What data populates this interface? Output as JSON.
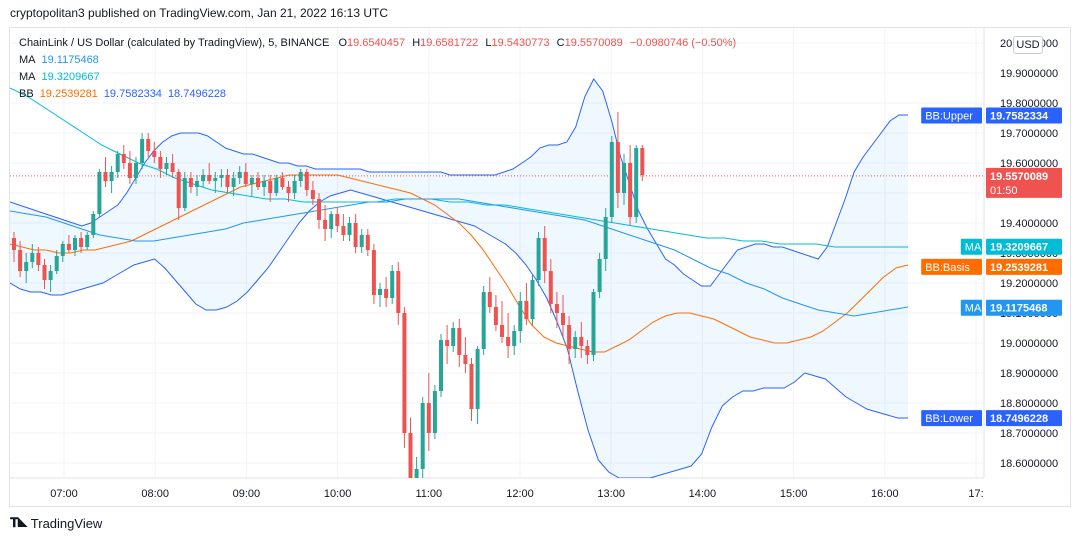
{
  "header": {
    "published": "cryptopolitan3 published on TradingView.com, Jan 21, 2022 16:13 UTC"
  },
  "legend": {
    "symbol": "ChainLink / US Dollar (calculated by TradingView), 5, BINANCE",
    "o_label": "O",
    "o": "19.6540457",
    "h_label": "H",
    "h": "19.6581722",
    "l_label": "L",
    "l": "19.5430773",
    "c_label": "C",
    "c": "19.5570089",
    "change": "−0.0980746 (−0.50%)",
    "ma1_label": "MA",
    "ma1": "19.1175468",
    "ma2_label": "MA",
    "ma2": "19.3209667",
    "bb_label": "BB",
    "bb_basis": "19.2539281",
    "bb_upper": "19.7582334",
    "bb_lower": "18.7496228"
  },
  "currency_button": "USD",
  "footer": {
    "brand": "TradingView"
  },
  "colors": {
    "up": "#26a69a",
    "down": "#ef5350",
    "bb_line": "#2962ff",
    "bb_fill": "#2196f3",
    "basis": "#ff6d00",
    "ma_fast": "#2196f3",
    "ma_slow": "#00bcd4",
    "axis_text": "#131722",
    "grid": "#f0f3fa"
  },
  "chart_data": {
    "type": "candlestick",
    "timeframe": "5",
    "exchange": "BINANCE",
    "ylim": [
      18.55,
      20.05
    ],
    "y_ticks": [
      "20.0000000",
      "19.9000000",
      "19.8000000",
      "19.7000000",
      "19.6000000",
      "19.5000000",
      "19.4000000",
      "19.3000000",
      "19.2000000",
      "19.1000000",
      "19.0000000",
      "18.9000000",
      "18.8000000",
      "18.7000000",
      "18.6000000"
    ],
    "x_ticks": [
      "07:00",
      "08:00",
      "09:00",
      "10:00",
      "11:00",
      "12:00",
      "13:00",
      "14:00",
      "15:00",
      "16:00",
      "17:"
    ],
    "last_price": "19.5570089",
    "countdown": "01:50",
    "axis_labels": [
      {
        "name": "BB:Upper",
        "value": "19.7582334",
        "color": "#2962ff"
      },
      {
        "name": "",
        "value": "19.5570089",
        "color": "#ef5350"
      },
      {
        "name": "MA",
        "value": "19.3209667",
        "color": "#00bcd4"
      },
      {
        "name": "BB:Basis",
        "value": "19.2539281",
        "color": "#ff6d00"
      },
      {
        "name": "MA",
        "value": "19.1175468",
        "color": "#2196f3"
      },
      {
        "name": "BB:Lower",
        "value": "18.7496228",
        "color": "#2962ff"
      }
    ],
    "candles": [
      [
        19.35,
        19.37,
        19.27,
        19.31
      ],
      [
        19.31,
        19.34,
        19.22,
        19.24
      ],
      [
        19.24,
        19.3,
        19.2,
        19.27
      ],
      [
        19.27,
        19.33,
        19.25,
        19.3
      ],
      [
        19.3,
        19.32,
        19.24,
        19.26
      ],
      [
        19.26,
        19.28,
        19.18,
        19.21
      ],
      [
        19.21,
        19.26,
        19.17,
        19.24
      ],
      [
        19.24,
        19.31,
        19.23,
        19.29
      ],
      [
        19.29,
        19.34,
        19.27,
        19.33
      ],
      [
        19.33,
        19.36,
        19.3,
        19.31
      ],
      [
        19.31,
        19.36,
        19.29,
        19.35
      ],
      [
        19.35,
        19.37,
        19.3,
        19.32
      ],
      [
        19.32,
        19.37,
        19.31,
        19.36
      ],
      [
        19.36,
        19.44,
        19.35,
        19.43
      ],
      [
        19.43,
        19.58,
        19.42,
        19.57
      ],
      [
        19.57,
        19.62,
        19.52,
        19.54
      ],
      [
        19.54,
        19.59,
        19.5,
        19.57
      ],
      [
        19.57,
        19.64,
        19.55,
        19.63
      ],
      [
        19.63,
        19.66,
        19.58,
        19.6
      ],
      [
        19.6,
        19.64,
        19.53,
        19.55
      ],
      [
        19.55,
        19.62,
        19.53,
        19.6
      ],
      [
        19.6,
        19.7,
        19.58,
        19.68
      ],
      [
        19.68,
        19.7,
        19.62,
        19.64
      ],
      [
        19.64,
        19.67,
        19.6,
        19.62
      ],
      [
        19.62,
        19.64,
        19.55,
        19.58
      ],
      [
        19.58,
        19.62,
        19.56,
        19.6
      ],
      [
        19.6,
        19.63,
        19.55,
        19.57
      ],
      [
        19.57,
        19.58,
        19.41,
        19.45
      ],
      [
        19.45,
        19.57,
        19.44,
        19.55
      ],
      [
        19.55,
        19.57,
        19.5,
        19.52
      ],
      [
        19.52,
        19.56,
        19.49,
        19.54
      ],
      [
        19.54,
        19.58,
        19.52,
        19.56
      ],
      [
        19.56,
        19.6,
        19.53,
        19.54
      ],
      [
        19.54,
        19.57,
        19.5,
        19.55
      ],
      [
        19.55,
        19.58,
        19.52,
        19.56
      ],
      [
        19.56,
        19.58,
        19.5,
        19.52
      ],
      [
        19.52,
        19.57,
        19.49,
        19.55
      ],
      [
        19.55,
        19.59,
        19.53,
        19.57
      ],
      [
        19.57,
        19.6,
        19.52,
        19.53
      ],
      [
        19.53,
        19.56,
        19.49,
        19.55
      ],
      [
        19.55,
        19.57,
        19.51,
        19.52
      ],
      [
        19.52,
        19.56,
        19.49,
        19.54
      ],
      [
        19.54,
        19.56,
        19.47,
        19.5
      ],
      [
        19.5,
        19.56,
        19.49,
        19.55
      ],
      [
        19.55,
        19.57,
        19.51,
        19.52
      ],
      [
        19.52,
        19.54,
        19.47,
        19.5
      ],
      [
        19.5,
        19.56,
        19.48,
        19.54
      ],
      [
        19.54,
        19.58,
        19.52,
        19.57
      ],
      [
        19.57,
        19.58,
        19.49,
        19.51
      ],
      [
        19.51,
        19.54,
        19.46,
        19.48
      ],
      [
        19.48,
        19.5,
        19.38,
        19.41
      ],
      [
        19.41,
        19.46,
        19.34,
        19.38
      ],
      [
        19.38,
        19.44,
        19.35,
        19.43
      ],
      [
        19.43,
        19.45,
        19.37,
        19.39
      ],
      [
        19.39,
        19.43,
        19.34,
        19.36
      ],
      [
        19.36,
        19.42,
        19.34,
        19.4
      ],
      [
        19.4,
        19.43,
        19.3,
        19.32
      ],
      [
        19.32,
        19.38,
        19.3,
        19.36
      ],
      [
        19.36,
        19.38,
        19.29,
        19.31
      ],
      [
        19.31,
        19.33,
        19.13,
        19.16
      ],
      [
        19.16,
        19.2,
        19.12,
        19.18
      ],
      [
        19.18,
        19.22,
        19.12,
        19.15
      ],
      [
        19.15,
        19.26,
        19.13,
        19.24
      ],
      [
        19.24,
        19.27,
        19.06,
        19.1
      ],
      [
        19.1,
        19.12,
        18.65,
        18.7
      ],
      [
        18.7,
        18.75,
        18.4,
        18.45
      ],
      [
        18.45,
        18.62,
        18.42,
        18.58
      ],
      [
        18.58,
        18.82,
        18.55,
        18.8
      ],
      [
        18.8,
        18.9,
        18.64,
        18.7
      ],
      [
        18.7,
        18.86,
        18.68,
        18.84
      ],
      [
        18.84,
        19.03,
        18.82,
        19.01
      ],
      [
        19.01,
        19.06,
        18.93,
        18.99
      ],
      [
        18.99,
        19.07,
        18.97,
        19.05
      ],
      [
        19.05,
        19.08,
        18.92,
        18.96
      ],
      [
        18.96,
        19.02,
        18.9,
        18.93
      ],
      [
        18.93,
        18.95,
        18.74,
        18.78
      ],
      [
        18.78,
        18.99,
        18.73,
        18.98
      ],
      [
        18.98,
        19.19,
        18.96,
        19.17
      ],
      [
        19.17,
        19.22,
        19.1,
        19.12
      ],
      [
        19.12,
        19.16,
        19.04,
        19.06
      ],
      [
        19.06,
        19.14,
        19.0,
        19.02
      ],
      [
        19.02,
        19.1,
        18.95,
        18.99
      ],
      [
        18.99,
        19.06,
        18.96,
        19.04
      ],
      [
        19.04,
        19.17,
        19.0,
        19.14
      ],
      [
        19.14,
        19.2,
        19.06,
        19.08
      ],
      [
        19.08,
        19.23,
        19.06,
        19.21
      ],
      [
        19.21,
        19.37,
        19.19,
        19.35
      ],
      [
        19.35,
        19.39,
        19.2,
        19.24
      ],
      [
        19.24,
        19.28,
        19.1,
        19.13
      ],
      [
        19.13,
        19.17,
        19.05,
        19.1
      ],
      [
        19.1,
        19.16,
        19.02,
        19.06
      ],
      [
        19.06,
        19.09,
        18.93,
        18.98
      ],
      [
        18.98,
        19.04,
        18.95,
        19.02
      ],
      [
        19.02,
        19.07,
        18.95,
        18.99
      ],
      [
        18.99,
        19.01,
        18.93,
        18.96
      ],
      [
        18.96,
        19.18,
        18.94,
        19.17
      ],
      [
        19.17,
        19.3,
        19.15,
        19.28
      ],
      [
        19.28,
        19.45,
        19.24,
        19.42
      ],
      [
        19.42,
        19.69,
        19.4,
        19.67
      ],
      [
        19.67,
        19.77,
        19.45,
        19.5
      ],
      [
        19.5,
        19.63,
        19.46,
        19.6
      ],
      [
        19.6,
        19.66,
        19.39,
        19.42
      ],
      [
        19.42,
        19.66,
        19.4,
        19.65
      ],
      [
        19.65,
        19.66,
        19.54,
        19.56
      ]
    ],
    "bb_upper": [
      19.47,
      19.46,
      19.45,
      19.44,
      19.43,
      19.42,
      19.41,
      19.4,
      19.39,
      19.4,
      19.42,
      19.44,
      19.46,
      19.5,
      19.55,
      19.6,
      19.64,
      19.67,
      19.69,
      19.7,
      19.7,
      19.7,
      19.69,
      19.67,
      19.65,
      19.64,
      19.63,
      19.63,
      19.62,
      19.61,
      19.6,
      19.6,
      19.59,
      19.59,
      19.58,
      19.58,
      19.58,
      19.58,
      19.58,
      19.58,
      19.57,
      19.57,
      19.57,
      19.57,
      19.57,
      19.57,
      19.57,
      19.57,
      19.57,
      19.56,
      19.56,
      19.56,
      19.56,
      19.56,
      19.56,
      19.57,
      19.58,
      19.6,
      19.62,
      19.65,
      19.66,
      19.66,
      19.67,
      19.72,
      19.82,
      19.88,
      19.84,
      19.74,
      19.62,
      19.53,
      19.44,
      19.38,
      19.33,
      19.28,
      19.26,
      19.23,
      19.21,
      19.19,
      19.19,
      19.23,
      19.27,
      19.31,
      19.32,
      19.33,
      19.33,
      19.32,
      19.32,
      19.31,
      19.3,
      19.29,
      19.28,
      19.32,
      19.4,
      19.48,
      19.57,
      19.62,
      19.66,
      19.7,
      19.74,
      19.76,
      19.76
    ],
    "bb_lower": [
      19.2,
      19.18,
      19.17,
      19.17,
      19.16,
      19.16,
      19.17,
      19.18,
      19.19,
      19.2,
      19.22,
      19.24,
      19.26,
      19.27,
      19.28,
      19.25,
      19.21,
      19.17,
      19.13,
      19.11,
      19.11,
      19.12,
      19.14,
      19.17,
      19.21,
      19.25,
      19.3,
      19.35,
      19.4,
      19.44,
      19.47,
      19.49,
      19.5,
      19.51,
      19.5,
      19.49,
      19.48,
      19.47,
      19.46,
      19.45,
      19.44,
      19.43,
      19.42,
      19.41,
      19.4,
      19.39,
      19.37,
      19.35,
      19.33,
      19.3,
      19.26,
      19.21,
      19.15,
      19.07,
      18.98,
      18.84,
      18.71,
      18.61,
      18.57,
      18.55,
      18.55,
      18.55,
      18.55,
      18.56,
      18.57,
      18.58,
      18.59,
      18.63,
      18.72,
      18.79,
      18.82,
      18.84,
      18.84,
      18.85,
      18.85,
      18.85,
      18.87,
      18.9,
      18.89,
      18.88,
      18.85,
      18.82,
      18.8,
      18.78,
      18.77,
      18.76,
      18.75,
      18.75
    ],
    "bb_basis": [
      19.33,
      19.32,
      19.31,
      19.31,
      19.3,
      19.3,
      19.31,
      19.31,
      19.32,
      19.33,
      19.34,
      19.36,
      19.38,
      19.4,
      19.42,
      19.44,
      19.46,
      19.48,
      19.5,
      19.52,
      19.53,
      19.54,
      19.55,
      19.56,
      19.56,
      19.56,
      19.56,
      19.56,
      19.55,
      19.54,
      19.53,
      19.52,
      19.51,
      19.5,
      19.48,
      19.46,
      19.43,
      19.4,
      19.36,
      19.31,
      19.25,
      19.19,
      19.12,
      19.06,
      19.02,
      19.0,
      18.99,
      18.98,
      18.97,
      18.97,
      18.99,
      19.01,
      19.04,
      19.07,
      19.09,
      19.1,
      19.1,
      19.09,
      19.08,
      19.06,
      19.04,
      19.02,
      19.01,
      19.0,
      19.0,
      19.01,
      19.02,
      19.04,
      19.07,
      19.1,
      19.14,
      19.18,
      19.22,
      19.25,
      19.26
    ],
    "ma_slow": [
      19.85,
      19.82,
      19.78,
      19.74,
      19.7,
      19.66,
      19.63,
      19.6,
      19.58,
      19.55,
      19.53,
      19.51,
      19.5,
      19.49,
      19.48,
      19.48,
      19.47,
      19.47,
      19.47,
      19.47,
      19.47,
      19.48,
      19.48,
      19.48,
      19.47,
      19.47,
      19.46,
      19.46,
      19.45,
      19.44,
      19.43,
      19.42,
      19.41,
      19.4,
      19.39,
      19.38,
      19.37,
      19.36,
      19.35,
      19.35,
      19.34,
      19.34,
      19.33,
      19.33,
      19.33,
      19.32,
      19.32,
      19.32,
      19.32,
      19.32
    ],
    "ma_fast": [
      19.44,
      19.43,
      19.42,
      19.4,
      19.38,
      19.36,
      19.35,
      19.34,
      19.34,
      19.35,
      19.36,
      19.37,
      19.38,
      19.4,
      19.41,
      19.42,
      19.43,
      19.44,
      19.45,
      19.46,
      19.47,
      19.47,
      19.48,
      19.48,
      19.48,
      19.48,
      19.47,
      19.46,
      19.45,
      19.44,
      19.43,
      19.42,
      19.41,
      19.39,
      19.37,
      19.35,
      19.33,
      19.31,
      19.28,
      19.25,
      19.23,
      19.2,
      19.18,
      19.15,
      19.13,
      19.11,
      19.1,
      19.09,
      19.1,
      19.11,
      19.12
    ]
  }
}
